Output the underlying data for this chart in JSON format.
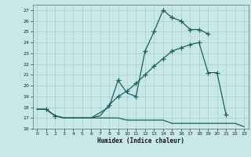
{
  "xlabel": "Humidex (Indice chaleur)",
  "bg_color": "#c8e8e8",
  "grid_color": "#a8cccc",
  "line_color": "#1a6060",
  "xlim": [
    -0.5,
    23.5
  ],
  "ylim": [
    16,
    27.5
  ],
  "xticks": [
    0,
    1,
    2,
    3,
    4,
    5,
    6,
    7,
    8,
    9,
    10,
    11,
    12,
    13,
    14,
    15,
    16,
    17,
    18,
    19,
    20,
    21,
    22,
    23
  ],
  "yticks": [
    16,
    17,
    18,
    19,
    20,
    21,
    22,
    23,
    24,
    25,
    26,
    27
  ],
  "line1_x": [
    0,
    1,
    2,
    3,
    4,
    5,
    6,
    7,
    8,
    9,
    10,
    11,
    12,
    13,
    14,
    15,
    16,
    17,
    18,
    19
  ],
  "line1_y": [
    17.8,
    17.8,
    17.2,
    17.0,
    17.0,
    17.0,
    17.0,
    17.5,
    18.0,
    20.5,
    19.3,
    19.0,
    23.2,
    25.0,
    27.0,
    26.3,
    26.0,
    25.2,
    25.2,
    24.8
  ],
  "line1_markers_x": [
    1,
    2,
    9,
    11,
    12,
    13,
    14,
    15,
    16,
    17,
    18,
    19
  ],
  "line1_markers_y": [
    17.8,
    17.2,
    20.5,
    19.0,
    23.2,
    25.0,
    27.0,
    26.3,
    26.0,
    25.2,
    25.2,
    24.8
  ],
  "line2_x": [
    0,
    1,
    2,
    3,
    4,
    5,
    6,
    7,
    8,
    9,
    10,
    11,
    12,
    13,
    14,
    15,
    16,
    17,
    18,
    19,
    20,
    21
  ],
  "line2_y": [
    17.8,
    17.8,
    17.2,
    17.0,
    17.0,
    17.0,
    17.0,
    17.2,
    18.2,
    19.0,
    19.5,
    20.2,
    21.0,
    21.8,
    22.5,
    23.2,
    23.5,
    23.8,
    24.0,
    21.2,
    21.2,
    17.3
  ],
  "line2_markers_x": [
    8,
    9,
    10,
    11,
    12,
    13,
    14,
    15,
    16,
    17,
    18,
    19,
    20,
    21
  ],
  "line2_markers_y": [
    18.2,
    19.0,
    19.5,
    20.2,
    21.0,
    21.8,
    22.5,
    23.2,
    23.5,
    23.8,
    24.0,
    21.2,
    21.2,
    17.3
  ],
  "line3_x": [
    0,
    1,
    2,
    3,
    4,
    5,
    6,
    7,
    8,
    9,
    10,
    11,
    12,
    13,
    14,
    15,
    16,
    17,
    18,
    19,
    20,
    21,
    22,
    23
  ],
  "line3_y": [
    17.8,
    17.8,
    17.2,
    17.0,
    17.0,
    17.0,
    17.0,
    17.0,
    17.0,
    17.0,
    16.8,
    16.8,
    16.8,
    16.8,
    16.8,
    16.5,
    16.5,
    16.5,
    16.5,
    16.5,
    16.5,
    16.5,
    16.5,
    16.2
  ]
}
